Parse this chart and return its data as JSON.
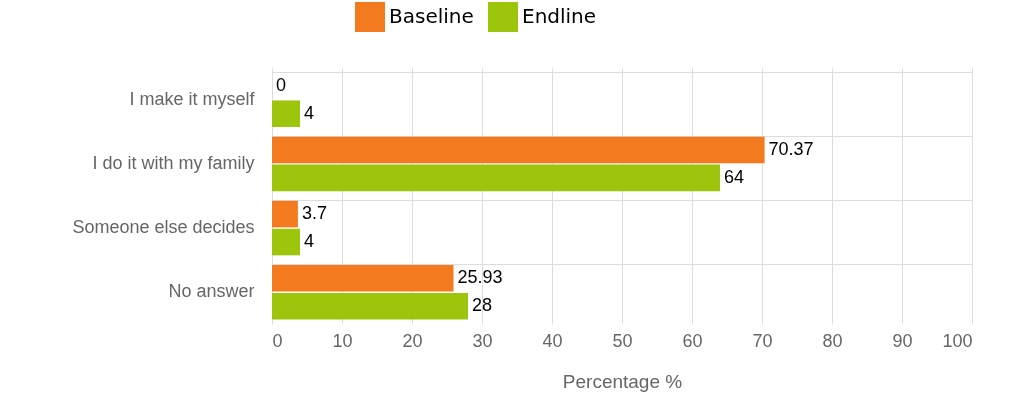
{
  "chart_data": {
    "type": "bar",
    "orientation": "horizontal",
    "xlabel": "Percentage %",
    "categories": [
      "I make it myself",
      "I do it with my family",
      "Someone else decides",
      "No answer"
    ],
    "series": [
      {
        "name": "Baseline",
        "color": "#f47a20",
        "values": [
          0,
          70.37,
          3.7,
          25.93
        ]
      },
      {
        "name": "Endline",
        "color": "#9cc50b",
        "values": [
          4,
          64,
          4,
          28
        ]
      }
    ],
    "xlim": [
      0,
      100
    ],
    "xticks": [
      0,
      10,
      20,
      30,
      40,
      50,
      60,
      70,
      80,
      90,
      100
    ],
    "data_labels": true,
    "grid": true,
    "legend": "top"
  }
}
